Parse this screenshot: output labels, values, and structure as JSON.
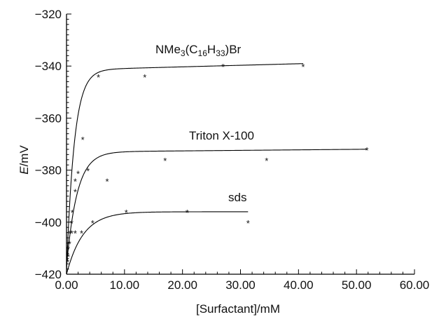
{
  "chart_data": {
    "type": "scatter",
    "title": "",
    "xlabel": "[Surfactant]/mM",
    "ylabel": "E/mV",
    "xlim": [
      0,
      60
    ],
    "ylim": [
      -420,
      -320
    ],
    "x_ticks": [
      "0.00",
      "10.00",
      "20.00",
      "30.00",
      "40.00",
      "50.00",
      "60.00"
    ],
    "y_ticks": [
      "-320",
      "-340",
      "-360",
      "-380",
      "-400",
      "-420"
    ],
    "grid": false,
    "legend": "none",
    "series": [
      {
        "name": "NMe3(C16H33)Br",
        "points": [
          [
            0.3,
            -410
          ],
          [
            0.6,
            -404
          ],
          [
            1.0,
            -396
          ],
          [
            1.5,
            -384
          ],
          [
            2.8,
            -368
          ],
          [
            5.5,
            -344
          ],
          [
            13.5,
            -344
          ],
          [
            27.0,
            -340
          ],
          [
            40.8,
            -340
          ]
        ],
        "fit": {
          "plateau": -341.5,
          "bottom": -419,
          "k": 0.75,
          "slope": 0.06
        }
      },
      {
        "name": "Triton X-100",
        "points": [
          [
            0.3,
            -413
          ],
          [
            0.5,
            -408
          ],
          [
            0.9,
            -400
          ],
          [
            1.5,
            -388
          ],
          [
            2.0,
            -381
          ],
          [
            3.7,
            -380
          ],
          [
            7.0,
            -384
          ],
          [
            17.0,
            -376
          ],
          [
            34.5,
            -376
          ],
          [
            51.8,
            -372
          ]
        ],
        "fit": {
          "plateau": -373,
          "bottom": -417,
          "k": 0.55,
          "slope": 0.02
        }
      },
      {
        "name": "sds",
        "points": [
          [
            0.2,
            -415
          ],
          [
            0.5,
            -408
          ],
          [
            0.9,
            -404
          ],
          [
            1.5,
            -404
          ],
          [
            2.6,
            -404
          ],
          [
            4.5,
            -400
          ],
          [
            10.3,
            -396
          ],
          [
            20.8,
            -396
          ],
          [
            31.3,
            -400
          ]
        ],
        "fit": {
          "plateau": -396,
          "bottom": -420,
          "k": 0.35,
          "slope": 0
        }
      }
    ]
  }
}
